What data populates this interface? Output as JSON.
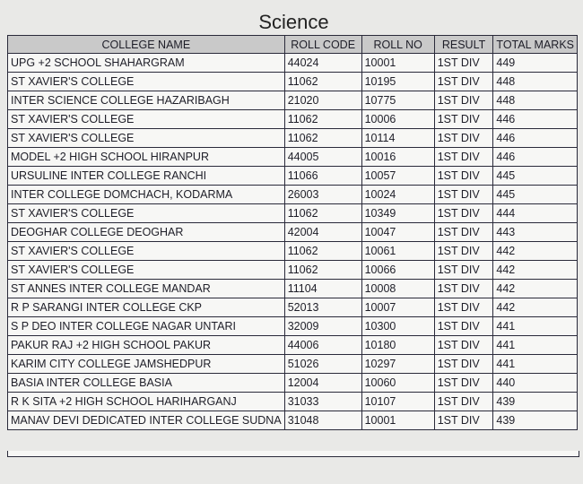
{
  "title": "Science",
  "table": {
    "headers": [
      "COLLEGE NAME",
      "ROLL CODE",
      "ROLL NO",
      "RESULT",
      "TOTAL MARKS"
    ],
    "rows": [
      [
        "UPG +2 SCHOOL SHAHARGRAM",
        "44024",
        "10001",
        "1ST DIV",
        "449"
      ],
      [
        "ST XAVIER'S COLLEGE",
        "11062",
        "10195",
        "1ST DIV",
        "448"
      ],
      [
        "INTER SCIENCE COLLEGE HAZARIBAGH",
        "21020",
        "10775",
        "1ST DIV",
        "448"
      ],
      [
        "ST XAVIER'S COLLEGE",
        "11062",
        "10006",
        "1ST DIV",
        "446"
      ],
      [
        "ST XAVIER'S COLLEGE",
        "11062",
        "10114",
        "1ST DIV",
        "446"
      ],
      [
        "MODEL +2 HIGH SCHOOL HIRANPUR",
        "44005",
        "10016",
        "1ST DIV",
        "446"
      ],
      [
        "URSULINE INTER COLLEGE RANCHI",
        "11066",
        "10057",
        "1ST DIV",
        "445"
      ],
      [
        "INTER COLLEGE DOMCHACH, KODARMA",
        "26003",
        "10024",
        "1ST DIV",
        "445"
      ],
      [
        "ST XAVIER'S COLLEGE",
        "11062",
        "10349",
        "1ST DIV",
        "444"
      ],
      [
        "DEOGHAR COLLEGE DEOGHAR",
        "42004",
        "10047",
        "1ST DIV",
        "443"
      ],
      [
        "ST XAVIER'S COLLEGE",
        "11062",
        "10061",
        "1ST DIV",
        "442"
      ],
      [
        "ST XAVIER'S COLLEGE",
        "11062",
        "10066",
        "1ST DIV",
        "442"
      ],
      [
        "ST ANNES INTER COLLEGE MANDAR",
        "11104",
        "10008",
        "1ST DIV",
        "442"
      ],
      [
        "R P SARANGI INTER COLLEGE CKP",
        "52013",
        "10007",
        "1ST DIV",
        "442"
      ],
      [
        "S P DEO INTER COLLEGE NAGAR UNTARI",
        "32009",
        "10300",
        "1ST DIV",
        "441"
      ],
      [
        "PAKUR RAJ +2 HIGH SCHOOL PAKUR",
        "44006",
        "10180",
        "1ST DIV",
        "441"
      ],
      [
        "KARIM CITY COLLEGE JAMSHEDPUR",
        "51026",
        "10297",
        "1ST DIV",
        "441"
      ],
      [
        "BASIA INTER COLLEGE BASIA",
        "12004",
        "10060",
        "1ST DIV",
        "440"
      ],
      [
        "R K SITA +2 HIGH SCHOOL HARIHARGANJ",
        "31033",
        "10107",
        "1ST DIV",
        "439"
      ],
      [
        "MANAV DEVI DEDICATED INTER COLLEGE SUDNA",
        "31048",
        "10001",
        "1ST DIV",
        "439"
      ]
    ]
  }
}
